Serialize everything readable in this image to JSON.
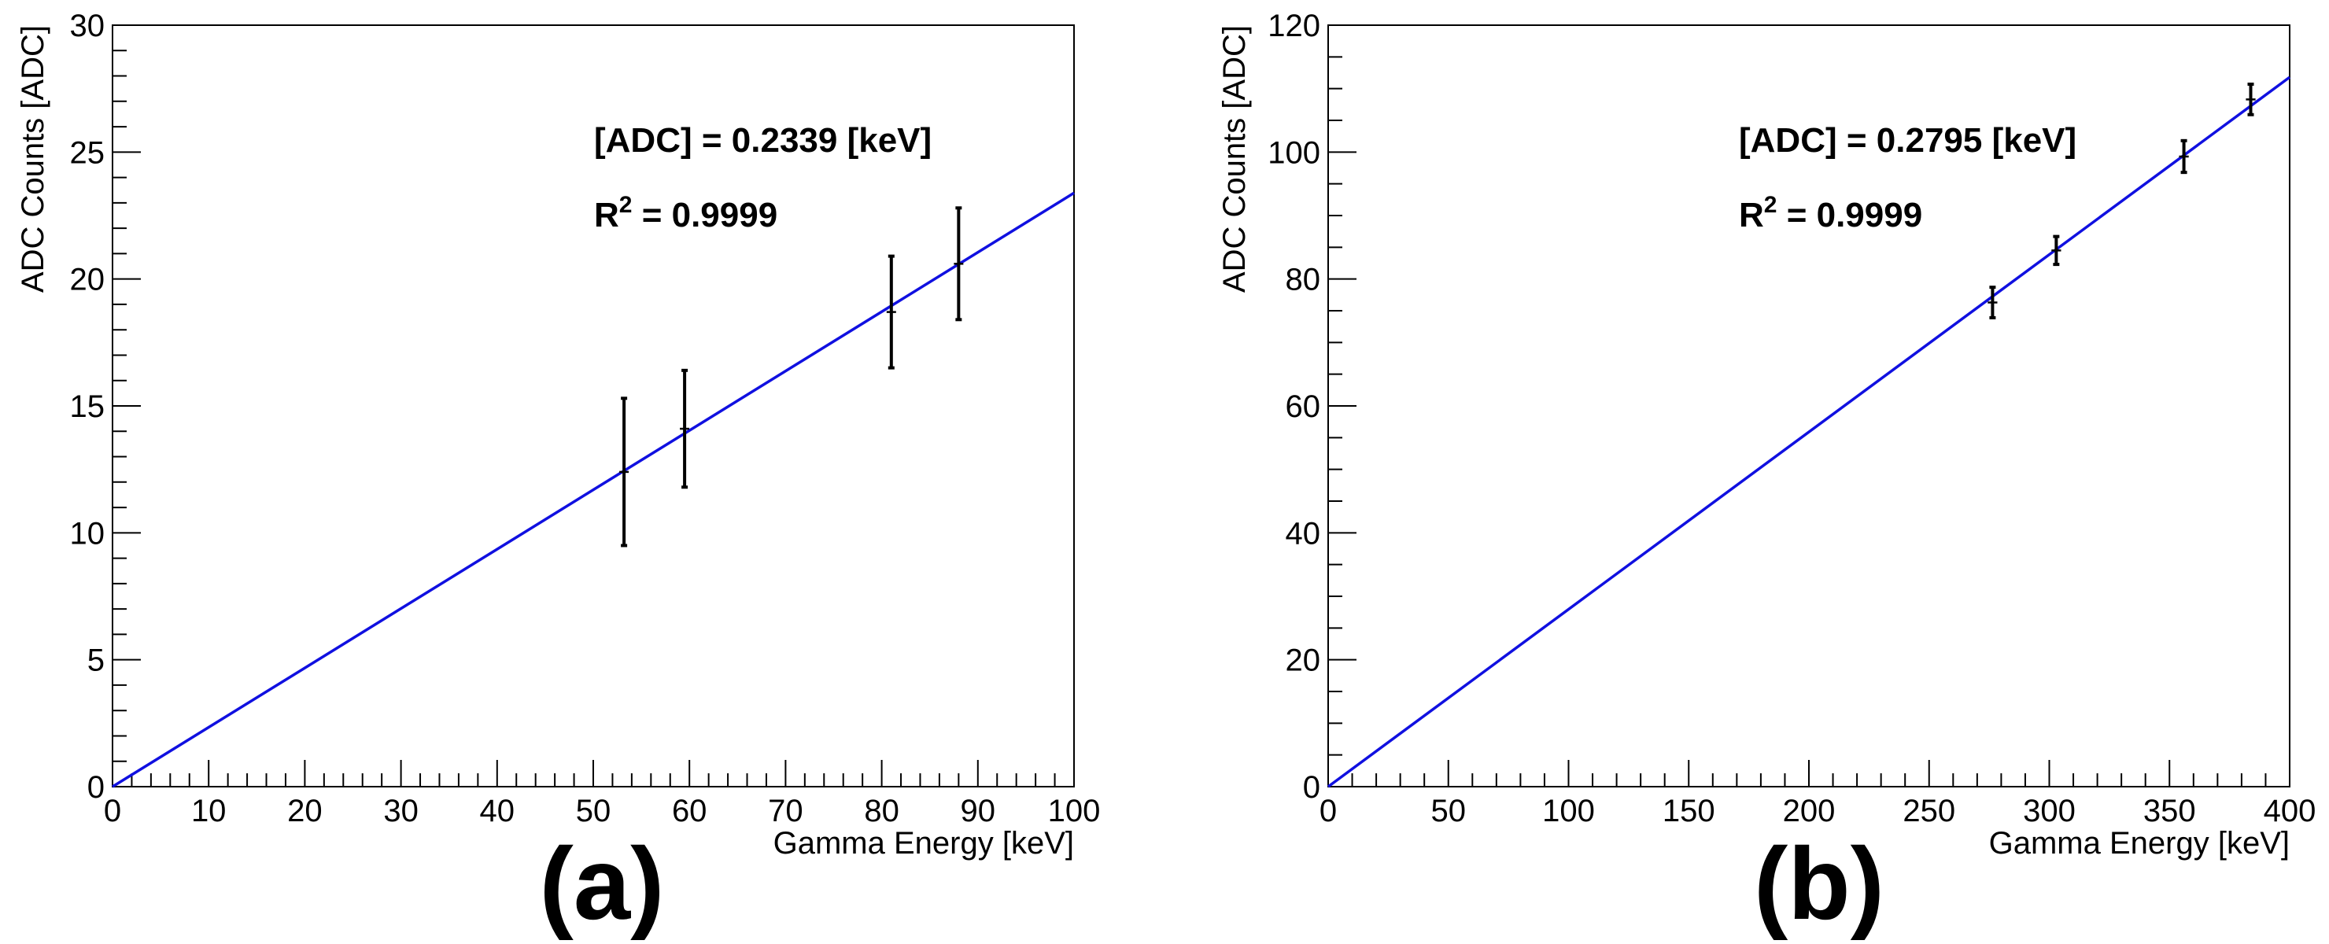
{
  "chart_data": [
    {
      "type": "scatter",
      "panel_label": "(a)",
      "xlabel": "Gamma Energy [keV]",
      "ylabel": "ADC Counts [ADC]",
      "xlim": [
        0,
        100
      ],
      "ylim": [
        0,
        30
      ],
      "x_major_ticks": [
        0,
        10,
        20,
        30,
        40,
        50,
        60,
        70,
        80,
        90,
        100
      ],
      "x_tick_labels": [
        "0",
        "10",
        "20",
        "30",
        "40",
        "50",
        "60",
        "70",
        "80",
        "90",
        "100"
      ],
      "x_minor_step": 2,
      "y_major_ticks": [
        0,
        5,
        10,
        15,
        20,
        25,
        30
      ],
      "y_tick_labels": [
        "0",
        "5",
        "10",
        "15",
        "20",
        "25",
        "30"
      ],
      "y_minor_step": 1,
      "points": [
        {
          "x": 53.2,
          "y": 12.4,
          "yerr": 2.9,
          "xerr": 0.2
        },
        {
          "x": 59.5,
          "y": 14.1,
          "yerr": 2.3,
          "xerr": 0.2
        },
        {
          "x": 81.0,
          "y": 18.7,
          "yerr": 2.2,
          "xerr": 0.3
        },
        {
          "x": 88.0,
          "y": 20.6,
          "yerr": 2.2,
          "xerr": 0.3
        }
      ],
      "fit": {
        "slope": 0.2339,
        "intercept": 0,
        "x_from": 0,
        "x_to": 100,
        "color": "#1010e0"
      },
      "annotation_eq": "[ADC] = 0.2339 [keV]",
      "annotation_r2_prefix": "R",
      "annotation_r2_sup": "2",
      "annotation_r2_value": " = 0.9999"
    },
    {
      "type": "scatter",
      "panel_label": "(b)",
      "xlabel": "Gamma Energy [keV]",
      "ylabel": "ADC Counts [ADC]",
      "xlim": [
        0,
        400
      ],
      "ylim": [
        0,
        120
      ],
      "x_major_ticks": [
        0,
        50,
        100,
        150,
        200,
        250,
        300,
        350,
        400
      ],
      "x_tick_labels": [
        "0",
        "50",
        "100",
        "150",
        "200",
        "250",
        "300",
        "350",
        "400"
      ],
      "x_minor_step": 10,
      "y_major_ticks": [
        0,
        20,
        40,
        60,
        80,
        100,
        120
      ],
      "y_tick_labels": [
        "0",
        "20",
        "40",
        "60",
        "80",
        "100",
        "120"
      ],
      "y_minor_step": 5,
      "points": [
        {
          "x": 276.4,
          "y": 76.3,
          "yerr": 2.4,
          "xerr": 2.0
        },
        {
          "x": 302.9,
          "y": 84.5,
          "yerr": 2.2,
          "xerr": 2.0
        },
        {
          "x": 356.0,
          "y": 99.3,
          "yerr": 2.5,
          "xerr": 2.0
        },
        {
          "x": 383.8,
          "y": 108.3,
          "yerr": 2.4,
          "xerr": 2.0
        }
      ],
      "fit": {
        "slope": 0.2795,
        "intercept": 0,
        "x_from": 0,
        "x_to": 400,
        "color": "#1010e0"
      },
      "annotation_eq": "[ADC] = 0.2795 [keV]",
      "annotation_r2_prefix": "R",
      "annotation_r2_sup": "2",
      "annotation_r2_value": " = 0.9999"
    }
  ]
}
